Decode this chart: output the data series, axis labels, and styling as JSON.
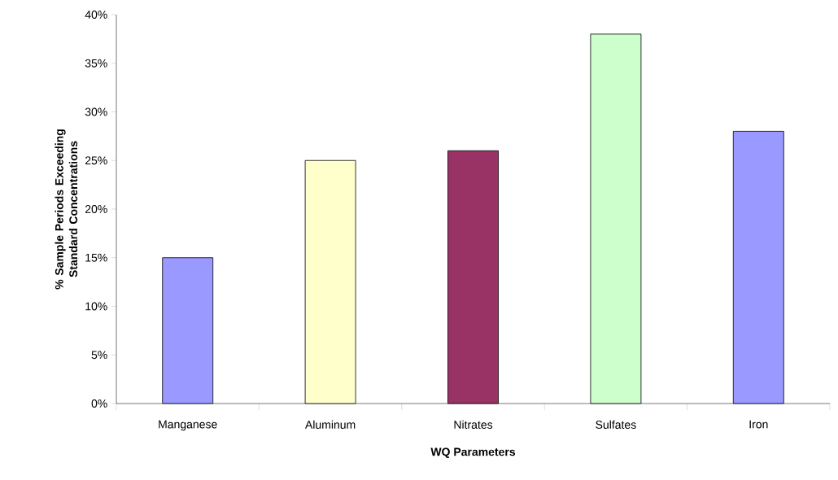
{
  "chart_data": {
    "type": "bar",
    "xlabel": "WQ Parameters",
    "ylabel": "% Sample Periods Exceeding Standard Concentrations",
    "categories": [
      "Manganese",
      "Aluminum",
      "Nitrates",
      "Sulfates",
      "Iron"
    ],
    "values": [
      15,
      25,
      26,
      38,
      28
    ],
    "colors": [
      "#9999ff",
      "#ffffcc",
      "#993366",
      "#ccffcc",
      "#9999ff"
    ],
    "ylim": [
      0,
      40
    ],
    "yticks": [
      {
        "value": 0,
        "label": "0%"
      },
      {
        "value": 5,
        "label": "5%"
      },
      {
        "value": 10,
        "label": "10%"
      },
      {
        "value": 15,
        "label": "15%"
      },
      {
        "value": 20,
        "label": "20%"
      },
      {
        "value": 25,
        "label": "25%"
      },
      {
        "value": 30,
        "label": "30%"
      },
      {
        "value": 35,
        "label": "35%"
      },
      {
        "value": 40,
        "label": "40%"
      }
    ],
    "grid": false
  }
}
